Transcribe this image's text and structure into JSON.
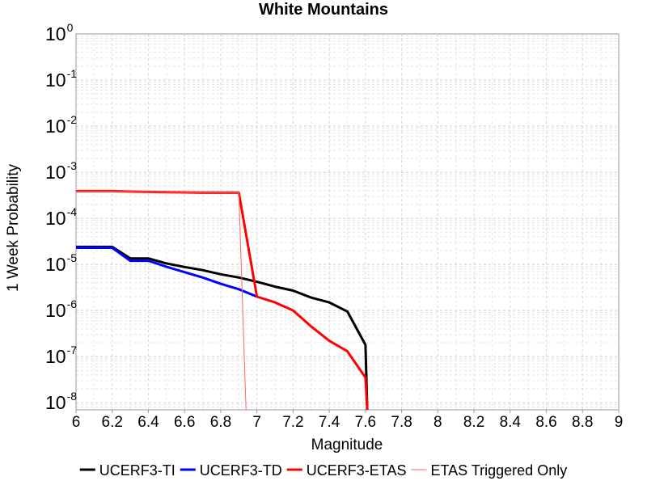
{
  "chart_data": {
    "type": "line",
    "title": "White Mountains",
    "xlabel": "Magnitude",
    "ylabel": "1 Week Probability",
    "xlim": [
      6,
      9
    ],
    "ylim": [
      7e-09,
      1
    ],
    "yscale": "log",
    "grid": true,
    "legend_position": "bottom",
    "x_ticks": [
      "6",
      "6.2",
      "6.4",
      "6.6",
      "6.8",
      "7",
      "7.2",
      "7.4",
      "7.6",
      "7.8",
      "8",
      "8.2",
      "8.4",
      "8.6",
      "8.8",
      "9"
    ],
    "y_ticks": [
      {
        "base": "10",
        "exp": "0",
        "value": 1
      },
      {
        "base": "10",
        "exp": "-1",
        "value": 0.1
      },
      {
        "base": "10",
        "exp": "-2",
        "value": 0.01
      },
      {
        "base": "10",
        "exp": "-3",
        "value": 0.001
      },
      {
        "base": "10",
        "exp": "-4",
        "value": 0.0001
      },
      {
        "base": "10",
        "exp": "-5",
        "value": 1e-05
      },
      {
        "base": "10",
        "exp": "-6",
        "value": 1e-06
      },
      {
        "base": "10",
        "exp": "-7",
        "value": 1e-07
      },
      {
        "base": "10",
        "exp": "-8",
        "value": 1e-08
      }
    ],
    "series": [
      {
        "name": "UCERF3-TI",
        "color": "#000000",
        "line_width": 3,
        "points": [
          [
            6.0,
            2.4e-05
          ],
          [
            6.2,
            2.4e-05
          ],
          [
            6.3,
            1.35e-05
          ],
          [
            6.4,
            1.35e-05
          ],
          [
            6.5,
            1.05e-05
          ],
          [
            6.6,
            8.8e-06
          ],
          [
            6.7,
            7.5e-06
          ],
          [
            6.8,
            6.1e-06
          ],
          [
            6.9,
            5.2e-06
          ],
          [
            7.0,
            4.2e-06
          ],
          [
            7.1,
            3.3e-06
          ],
          [
            7.2,
            2.7e-06
          ],
          [
            7.3,
            1.9e-06
          ],
          [
            7.4,
            1.5e-06
          ],
          [
            7.5,
            9.5e-07
          ],
          [
            7.6,
            1.8e-07
          ],
          [
            7.61,
            7e-09
          ]
        ]
      },
      {
        "name": "UCERF3-TD",
        "color": "#0000ff",
        "line_width": 3,
        "points": [
          [
            6.0,
            2.3e-05
          ],
          [
            6.2,
            2.3e-05
          ],
          [
            6.3,
            1.2e-05
          ],
          [
            6.4,
            1.2e-05
          ],
          [
            6.5,
            8.9e-06
          ],
          [
            6.6,
            6.8e-06
          ],
          [
            6.7,
            5.2e-06
          ],
          [
            6.8,
            3.8e-06
          ],
          [
            6.9,
            2.9e-06
          ],
          [
            7.0,
            2e-06
          ]
        ]
      },
      {
        "name": "UCERF3-ETAS",
        "color": "#ff0000",
        "line_width": 3,
        "points": [
          [
            6.0,
            0.00039
          ],
          [
            6.2,
            0.00039
          ],
          [
            6.3,
            0.00038
          ],
          [
            6.4,
            0.000375
          ],
          [
            6.5,
            0.00037
          ],
          [
            6.6,
            0.000365
          ],
          [
            6.7,
            0.00036
          ],
          [
            6.8,
            0.00036
          ],
          [
            6.9,
            0.00036
          ],
          [
            7.0,
            2e-06
          ],
          [
            7.1,
            1.5e-06
          ],
          [
            7.2,
            1e-06
          ],
          [
            7.3,
            4.5e-07
          ],
          [
            7.4,
            2.2e-07
          ],
          [
            7.5,
            1.3e-07
          ],
          [
            7.6,
            3.5e-08
          ],
          [
            7.61,
            7e-09
          ]
        ]
      },
      {
        "name": "ETAS Triggered Only",
        "color": "#ff6666",
        "line_width": 1,
        "points": [
          [
            6.0,
            0.00039
          ],
          [
            6.2,
            0.00039
          ],
          [
            6.3,
            0.00038
          ],
          [
            6.4,
            0.000375
          ],
          [
            6.5,
            0.00037
          ],
          [
            6.6,
            0.000365
          ],
          [
            6.7,
            0.00036
          ],
          [
            6.8,
            0.00036
          ],
          [
            6.9,
            0.00036
          ],
          [
            6.94,
            7e-09
          ]
        ]
      }
    ]
  }
}
